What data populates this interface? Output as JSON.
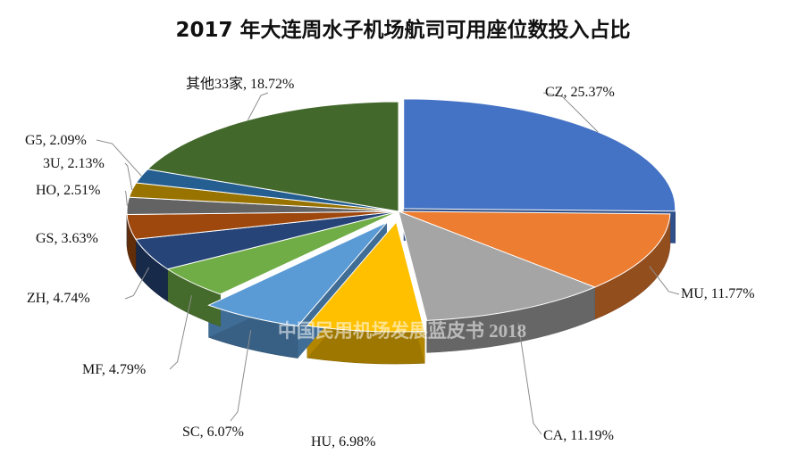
{
  "chart_data": {
    "type": "pie",
    "title": "2017 年大连周水子机场航司可用座位数投入占比",
    "watermark": "中国民用机场发展蓝皮书 2018",
    "slices": [
      {
        "name": "CZ",
        "value": 25.37,
        "label": "CZ, 25.37%",
        "color": "#4472C4"
      },
      {
        "name": "MU",
        "value": 11.77,
        "label": "MU, 11.77%",
        "color": "#ED7D31"
      },
      {
        "name": "CA",
        "value": 11.19,
        "label": "CA, 11.19%",
        "color": "#A5A5A5"
      },
      {
        "name": "HU",
        "value": 6.98,
        "label": "HU, 6.98%",
        "color": "#FFC000"
      },
      {
        "name": "SC",
        "value": 6.07,
        "label": "SC, 6.07%",
        "color": "#5B9BD5"
      },
      {
        "name": "MF",
        "value": 4.79,
        "label": "MF, 4.79%",
        "color": "#70AD47"
      },
      {
        "name": "ZH",
        "value": 4.74,
        "label": "ZH, 4.74%",
        "color": "#264478"
      },
      {
        "name": "GS",
        "value": 3.63,
        "label": "GS, 3.63%",
        "color": "#9E480E"
      },
      {
        "name": "HO",
        "value": 2.51,
        "label": "HO, 2.51%",
        "color": "#636363"
      },
      {
        "name": "3U",
        "value": 2.13,
        "label": "3U, 2.13%",
        "color": "#997300"
      },
      {
        "name": "G5",
        "value": 2.09,
        "label": "G5, 2.09%",
        "color": "#255E91"
      },
      {
        "name": "其他33家",
        "value": 18.72,
        "label": "其他33家, 18.72%",
        "color": "#43682B"
      }
    ]
  }
}
